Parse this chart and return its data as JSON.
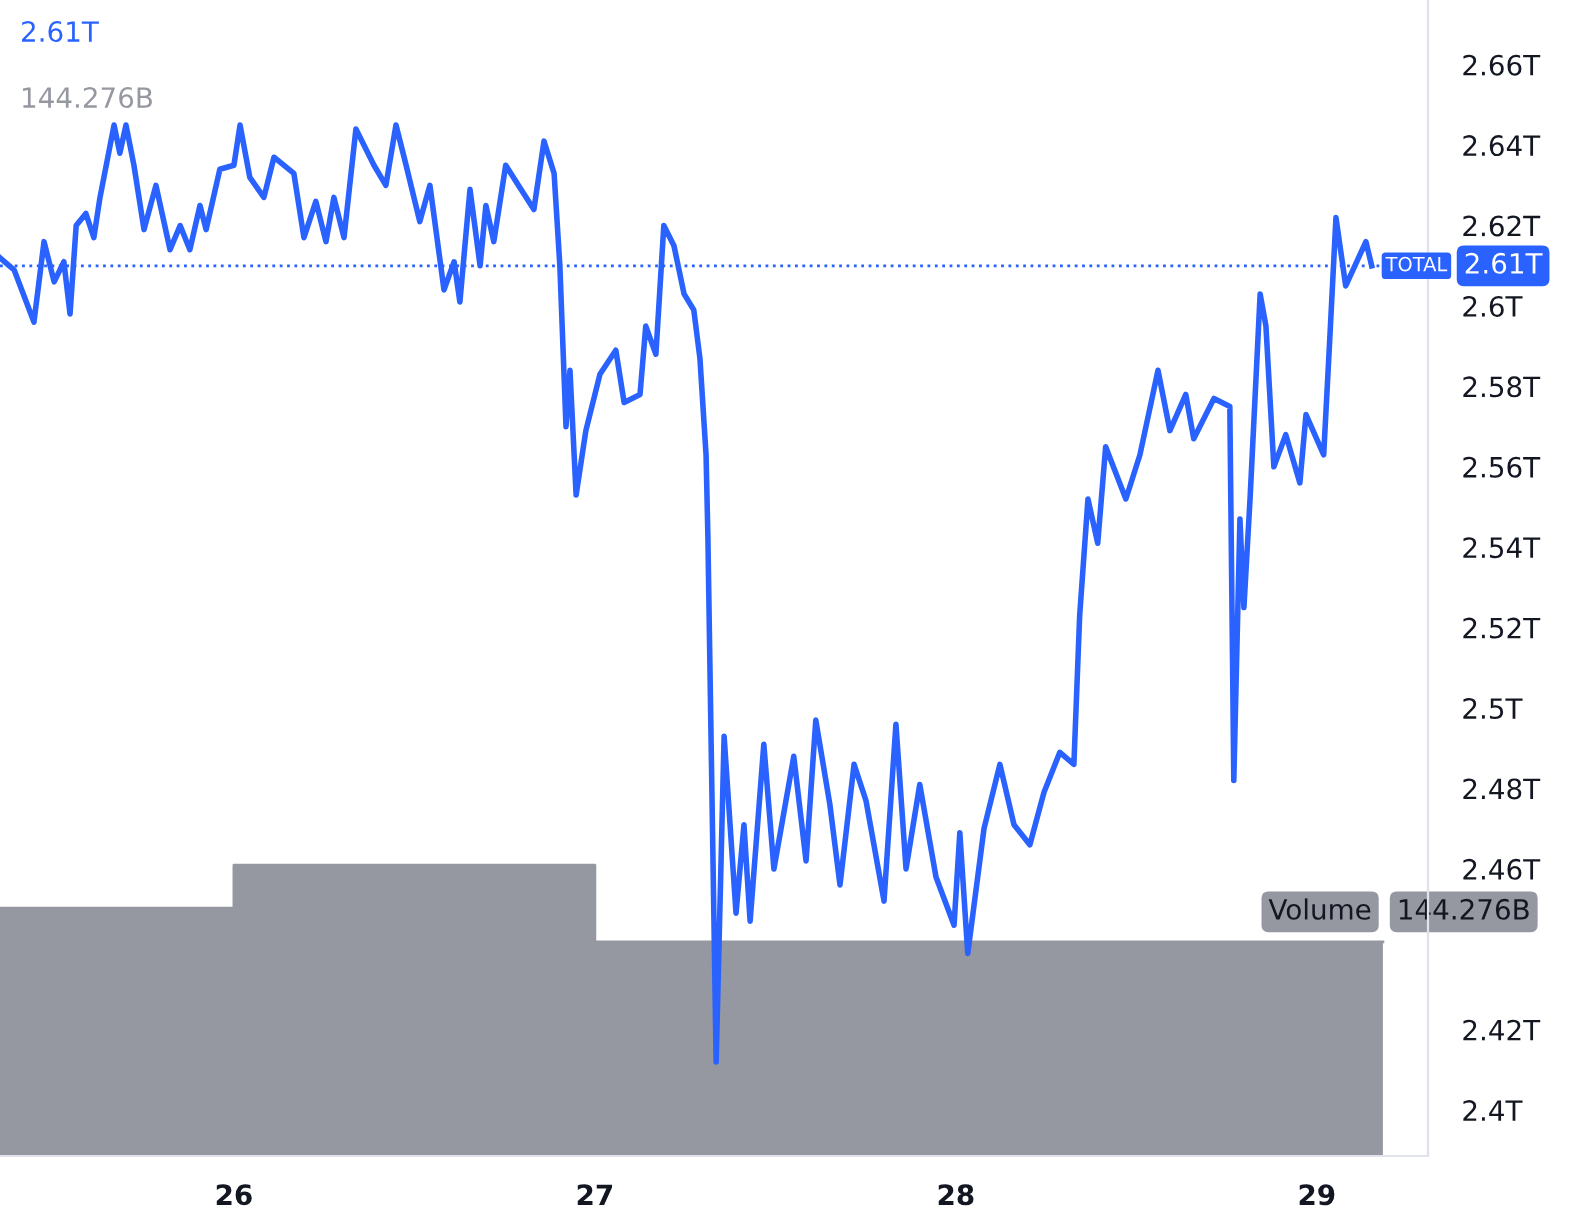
{
  "chart_data": {
    "type": "line",
    "x": [
      25.352,
      25.391,
      25.446,
      25.474,
      25.502,
      25.529,
      25.546,
      25.563,
      25.59,
      25.612,
      25.629,
      25.668,
      25.684,
      25.701,
      25.723,
      25.751,
      25.784,
      25.823,
      25.851,
      25.878,
      25.906,
      25.923,
      25.961,
      26.0,
      26.017,
      26.044,
      26.083,
      26.111,
      26.166,
      26.194,
      26.227,
      26.255,
      26.277,
      26.305,
      26.338,
      26.388,
      26.421,
      26.449,
      26.477,
      26.515,
      26.543,
      26.582,
      26.61,
      26.626,
      26.654,
      26.682,
      26.698,
      26.72,
      26.753,
      26.781,
      26.831,
      26.859,
      26.887,
      26.903,
      26.92,
      26.931,
      26.948,
      26.975,
      27.014,
      27.058,
      27.081,
      27.125,
      27.141,
      27.169,
      27.191,
      27.219,
      27.247,
      27.274,
      27.291,
      27.308,
      27.313,
      27.336,
      27.358,
      27.391,
      27.413,
      27.43,
      27.468,
      27.496,
      27.551,
      27.585,
      27.612,
      27.651,
      27.679,
      27.718,
      27.751,
      27.801,
      27.834,
      27.862,
      27.9,
      27.945,
      27.995,
      28.011,
      28.033,
      28.078,
      28.122,
      28.161,
      28.205,
      28.244,
      28.288,
      28.327,
      28.343,
      28.366,
      28.393,
      28.415,
      28.471,
      28.51,
      28.56,
      28.593,
      28.637,
      28.659,
      28.715,
      28.759,
      28.77,
      28.787,
      28.798,
      28.815,
      28.843,
      28.859,
      28.881,
      28.914,
      28.953,
      28.97,
      29.019,
      29.036,
      29.053,
      29.08,
      29.136,
      29.152
    ],
    "series": [
      {
        "color": "#2962ff",
        "values": [
          2.612,
          2.609,
          2.596,
          2.616,
          2.606,
          2.611,
          2.598,
          2.62,
          2.623,
          2.617,
          2.627,
          2.645,
          2.638,
          2.645,
          2.635,
          2.619,
          2.63,
          2.614,
          2.62,
          2.614,
          2.625,
          2.619,
          2.634,
          2.635,
          2.645,
          2.632,
          2.627,
          2.637,
          2.633,
          2.617,
          2.626,
          2.616,
          2.627,
          2.617,
          2.644,
          2.635,
          2.63,
          2.645,
          2.635,
          2.621,
          2.63,
          2.604,
          2.611,
          2.601,
          2.629,
          2.61,
          2.625,
          2.616,
          2.635,
          2.631,
          2.624,
          2.641,
          2.633,
          2.61,
          2.57,
          2.584,
          2.553,
          2.569,
          2.583,
          2.589,
          2.576,
          2.578,
          2.595,
          2.588,
          2.62,
          2.615,
          2.603,
          2.599,
          2.587,
          2.563,
          2.543,
          2.412,
          2.493,
          2.449,
          2.471,
          2.447,
          2.491,
          2.46,
          2.488,
          2.462,
          2.497,
          2.476,
          2.456,
          2.486,
          2.477,
          2.452,
          2.496,
          2.46,
          2.481,
          2.458,
          2.446,
          2.469,
          2.439,
          2.47,
          2.486,
          2.471,
          2.466,
          2.479,
          2.489,
          2.486,
          2.523,
          2.552,
          2.541,
          2.565,
          2.552,
          2.563,
          2.584,
          2.569,
          2.578,
          2.567,
          2.577,
          2.575,
          2.482,
          2.547,
          2.525,
          2.552,
          2.603,
          2.595,
          2.56,
          2.568,
          2.556,
          2.573,
          2.563,
          2.592,
          2.622,
          2.605,
          2.616,
          2.61
        ]
      },
      {
        "type": "area",
        "axis": "y2",
        "name": "Volume",
        "color": "#9598a1",
        "x": [
          25.352,
          26,
          26,
          27,
          27,
          29.183
        ],
        "values": [
          167,
          167,
          196,
          196,
          144.276,
          144.276
        ],
        "value_labels": [
          null,
          null,
          null,
          null,
          null,
          "144.276B"
        ]
      }
    ],
    "xlim": [
      25.352,
      29.308
    ],
    "xticks": [
      26,
      27,
      28,
      29
    ],
    "ylim": [
      2.3886,
      2.6761
    ],
    "yticks": [
      {
        "value": 2.4,
        "label": "2.4T"
      },
      {
        "value": 2.42,
        "label": "2.42T"
      },
      {
        "value": 2.46,
        "label": "2.46T"
      },
      {
        "value": 2.48,
        "label": "2.48T"
      },
      {
        "value": 2.5,
        "label": "2.5T"
      },
      {
        "value": 2.52,
        "label": "2.52T"
      },
      {
        "value": 2.54,
        "label": "2.54T"
      },
      {
        "value": 2.56,
        "label": "2.56T"
      },
      {
        "value": 2.58,
        "label": "2.58T"
      },
      {
        "value": 2.6,
        "label": "2.6T"
      },
      {
        "value": 2.62,
        "label": "2.62T"
      },
      {
        "value": 2.64,
        "label": "2.64T"
      },
      {
        "value": 2.66,
        "label": "2.66T"
      }
    ],
    "y2lim": [
      0,
      779
    ],
    "ref_lines": [
      {
        "axis": "y",
        "value": 2.61,
        "label": "TOTAL",
        "color": "#2962ff",
        "line_style": "dotted"
      }
    ],
    "annotations": [
      "2.61T",
      "144.276B",
      "2.61T"
    ],
    "grid": false,
    "legend": false
  }
}
